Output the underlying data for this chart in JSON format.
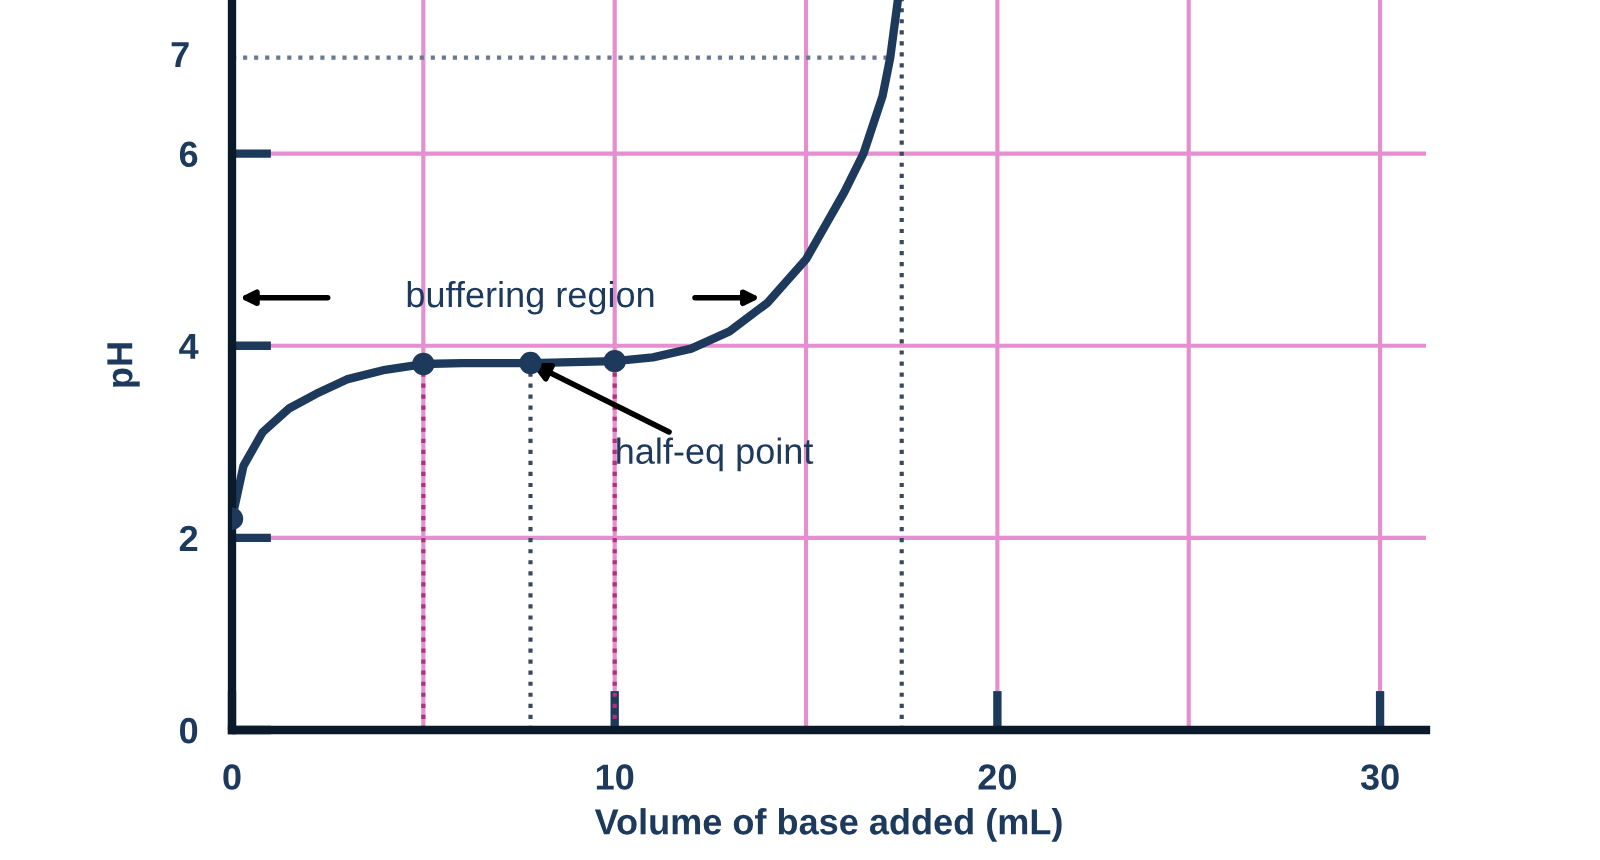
{
  "chart_data": {
    "type": "line",
    "xlabel": "Volume of base added (mL)",
    "ylabel": "pH",
    "xlim": [
      0,
      31.2
    ],
    "ylim": [
      0,
      7.6
    ],
    "xticks": [
      0,
      {
        "value": 5,
        "label": null
      },
      10,
      {
        "value": 15,
        "label": null
      },
      20,
      {
        "value": 25,
        "label": null
      },
      30
    ],
    "yticks": [
      0,
      2,
      4,
      6
    ],
    "grid": true,
    "legend": false,
    "series": [
      {
        "color": "#1d3a5c",
        "marker": "none",
        "x": [
          0,
          0.3,
          0.8,
          1.5,
          2.2,
          3,
          4,
          5,
          6,
          7.8,
          10,
          11,
          12,
          13,
          14,
          15,
          15.5,
          16,
          16.5,
          17,
          17.2,
          17.4
        ],
        "values": [
          2.2,
          2.75,
          3.1,
          3.35,
          3.5,
          3.65,
          3.75,
          3.81,
          3.82,
          3.82,
          3.84,
          3.88,
          3.97,
          4.15,
          4.45,
          4.9,
          5.25,
          5.6,
          6.0,
          6.6,
          7.0,
          7.6
        ]
      },
      {
        "type": "scatter",
        "color": "#1d3a5c",
        "marker": "circle",
        "x": [
          0,
          5,
          7.8,
          10
        ],
        "values": [
          2.2,
          3.81,
          3.82,
          3.84
        ]
      }
    ],
    "ref_lines": [
      {
        "axis": "y",
        "value": 7,
        "label": "7",
        "color": "#6a7a8c",
        "line_style": "dotted"
      },
      {
        "axis": "x",
        "value": 17.5,
        "color": "#3a4a5c",
        "line_style": "dotted"
      },
      {
        "axis": "x",
        "value": 5,
        "color": "#b0307a",
        "line_style": "dotted"
      },
      {
        "axis": "x",
        "value": 7.8,
        "color": "#3a4a5c",
        "line_style": "dotted"
      },
      {
        "axis": "x",
        "value": 10,
        "color": "#b0307a",
        "line_style": "dotted"
      }
    ],
    "annotations": [
      "buffering region",
      {
        "text": "half-eq point",
        "x": 7.8,
        "y": 3.82
      }
    ]
  }
}
